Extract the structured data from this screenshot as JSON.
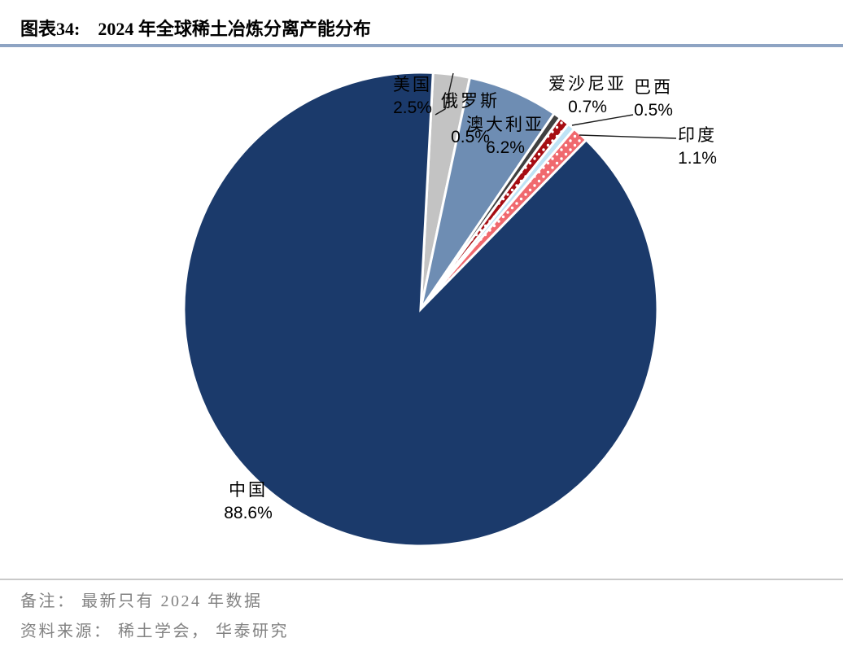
{
  "header": {
    "figure_label": "图表34:",
    "figure_title": "2024 年全球稀土冶炼分离产能分布"
  },
  "notes": {
    "remark": "备注： 最新只有 2024 年数据",
    "source": "资料来源： 稀土学会， 华泰研究"
  },
  "chart_data": {
    "type": "pie",
    "title": "2024 年全球稀土冶炼分离产能分布",
    "unit": "%",
    "start_angle_deg": 3,
    "direction": "clockwise",
    "legend_position": "none",
    "total": 100.1,
    "slices": [
      {
        "label": "美国",
        "value": 2.5,
        "display": "2.5%",
        "color": "#C3C3C3",
        "pattern": "solid"
      },
      {
        "label": "澳大利亚",
        "value": 6.2,
        "display": "6.2%",
        "color": "#6E8DB3",
        "pattern": "solid"
      },
      {
        "label": "俄罗斯",
        "value": 0.5,
        "display": "0.5%",
        "color": "#404040",
        "pattern": "solid"
      },
      {
        "label": "爱沙尼亚",
        "value": 0.7,
        "display": "0.7%",
        "color": "#A60D12",
        "pattern": "white-dots"
      },
      {
        "label": "巴西",
        "value": 0.5,
        "display": "0.5%",
        "color": "#BEE3F5",
        "pattern": "solid"
      },
      {
        "label": "印度",
        "value": 1.1,
        "display": "1.1%",
        "color": "#F0696E",
        "pattern": "white-dots"
      },
      {
        "label": "中国",
        "value": 88.6,
        "display": "88.6%",
        "color": "#1B3A6B",
        "pattern": "solid"
      }
    ],
    "colors": {
      "title_rule": "#8EA4C3",
      "note_rule": "#C9C9C9",
      "note_text": "#828282",
      "label_text": "#000000",
      "leader_line": "#1A1A1A",
      "slice_border": "#FFFFFF"
    }
  }
}
